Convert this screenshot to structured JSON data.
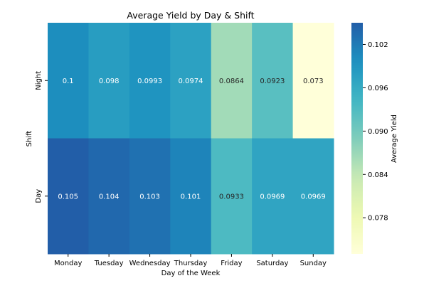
{
  "chart_data": {
    "type": "heatmap",
    "title": "Average Yield by Day & Shift",
    "xlabel": "Day of the Week",
    "ylabel": "Shift",
    "x_categories": [
      "Monday",
      "Tuesday",
      "Wednesday",
      "Thursday",
      "Friday",
      "Saturday",
      "Sunday"
    ],
    "y_categories": [
      "Night",
      "Day"
    ],
    "values": [
      [
        0.1,
        0.098,
        0.0993,
        0.0974,
        0.0864,
        0.0923,
        0.073
      ],
      [
        0.105,
        0.104,
        0.103,
        0.101,
        0.0933,
        0.0969,
        0.0969
      ]
    ],
    "annotations": [
      [
        "0.1",
        "0.098",
        "0.0993",
        "0.0974",
        "0.0864",
        "0.0923",
        "0.073"
      ],
      [
        "0.105",
        "0.104",
        "0.103",
        "0.101",
        "0.0933",
        "0.0969",
        "0.0969"
      ]
    ],
    "colormap": "YlGnBu",
    "colorbar": {
      "label": "Average Yield",
      "vmin": 0.073,
      "vmax": 0.105,
      "ticks": [
        0.078,
        0.084,
        0.09,
        0.096,
        0.102
      ],
      "tick_labels": [
        "0.078",
        "0.084",
        "0.090",
        "0.096",
        "0.102"
      ]
    }
  }
}
